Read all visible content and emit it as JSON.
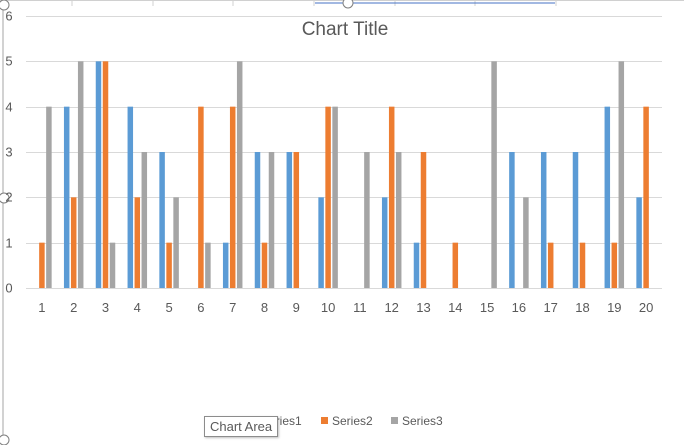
{
  "chart_data": {
    "type": "bar",
    "title": "Chart Title",
    "xlabel": "",
    "ylabel": "",
    "ylim": [
      0,
      6
    ],
    "yticks": [
      0,
      1,
      2,
      3,
      4,
      5,
      6
    ],
    "grid": true,
    "legend_position": "bottom",
    "categories": [
      "1",
      "2",
      "3",
      "4",
      "5",
      "6",
      "7",
      "8",
      "9",
      "10",
      "11",
      "12",
      "13",
      "14",
      "15",
      "16",
      "17",
      "18",
      "19",
      "20"
    ],
    "series": [
      {
        "name": "Series1",
        "color": "#5b9bd5",
        "values": [
          0,
          4,
          5,
          4,
          3,
          0,
          1,
          3,
          3,
          2,
          0,
          2,
          1,
          0,
          0,
          3,
          3,
          3,
          4,
          2
        ]
      },
      {
        "name": "Series2",
        "color": "#ed7d31",
        "values": [
          1,
          2,
          5,
          2,
          1,
          4,
          4,
          1,
          3,
          4,
          0,
          4,
          3,
          1,
          0,
          0,
          1,
          1,
          1,
          4
        ]
      },
      {
        "name": "Series3",
        "color": "#a5a5a5",
        "values": [
          4,
          5,
          1,
          3,
          2,
          1,
          5,
          3,
          0,
          4,
          3,
          3,
          0,
          0,
          5,
          2,
          0,
          0,
          5,
          0
        ]
      }
    ]
  },
  "tooltip": {
    "label": "Chart Area"
  }
}
